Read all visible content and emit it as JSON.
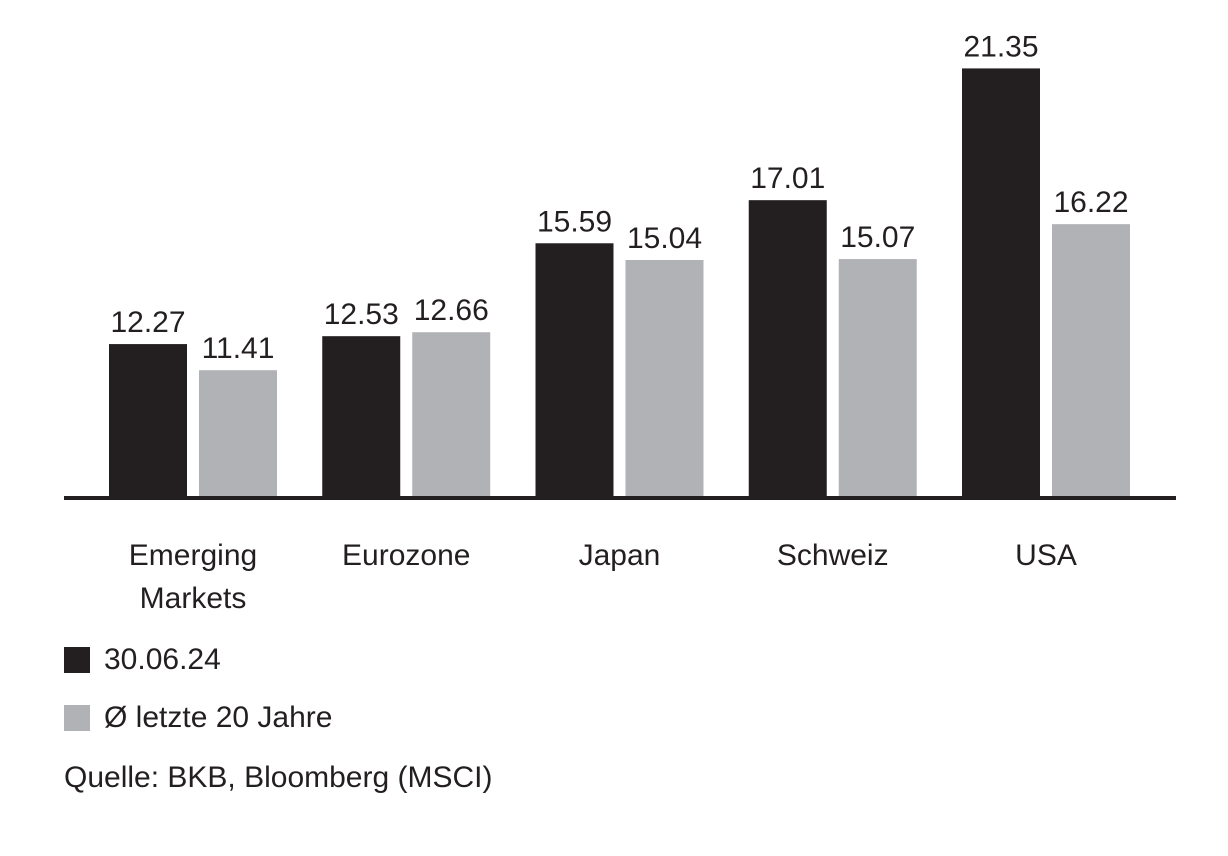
{
  "chart_data": {
    "type": "bar",
    "categories": [
      [
        "Emerging",
        "Markets"
      ],
      [
        "Eurozone"
      ],
      [
        "Japan"
      ],
      [
        "Schweiz"
      ],
      [
        "USA"
      ]
    ],
    "series": [
      {
        "name": "30.06.24",
        "values": [
          12.27,
          12.53,
          15.59,
          17.01,
          21.35
        ],
        "labels": [
          "12.27",
          "12.53",
          "15.59",
          "17.01",
          "21.35"
        ],
        "color": "#231f20"
      },
      {
        "name": "Ø letzte 20 Jahre",
        "values": [
          11.41,
          12.66,
          15.04,
          15.07,
          16.22
        ],
        "labels": [
          "11.41",
          "12.66",
          "15.04",
          "15.07",
          "16.22"
        ],
        "color": "#b1b2b5"
      }
    ],
    "ylim": [
      7.2,
      22.1
    ],
    "grid": false,
    "legend_position": "bottom-left"
  },
  "legend": [
    {
      "label": "30.06.24",
      "color": "#231f20"
    },
    {
      "label": "Ø letzte 20 Jahre",
      "color": "#b1b2b5"
    }
  ],
  "source": "Quelle: BKB, Bloomberg (MSCI)"
}
